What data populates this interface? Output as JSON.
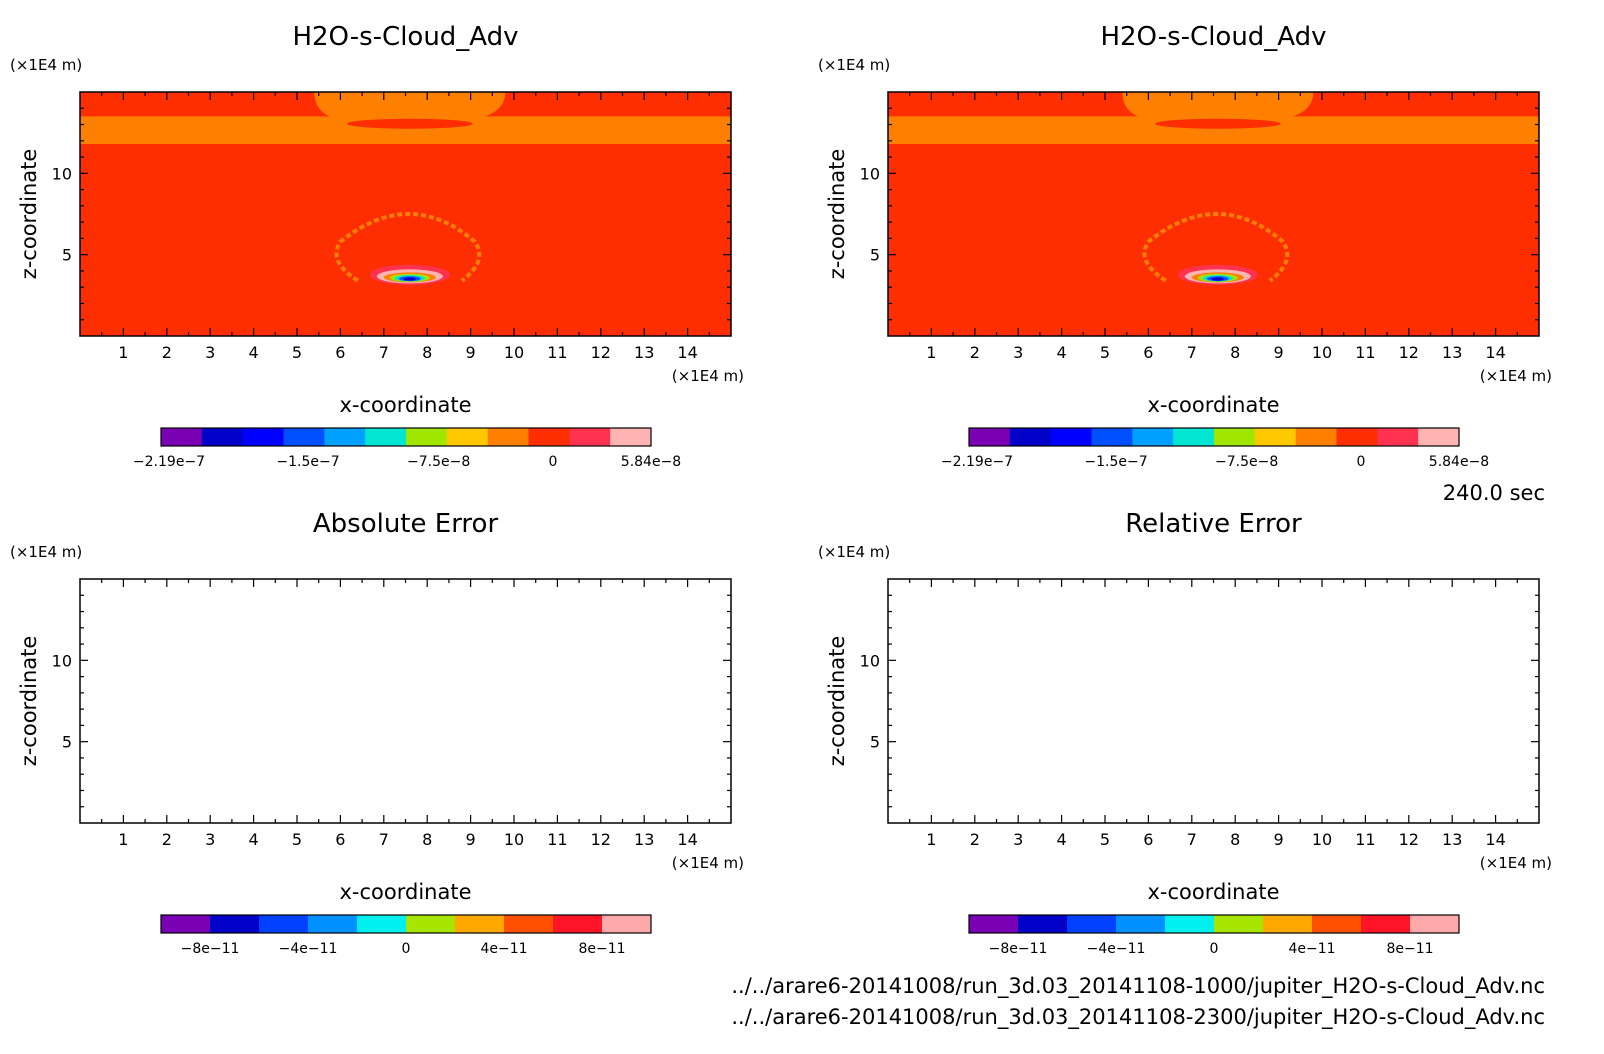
{
  "time_label": "240.0 sec",
  "files": [
    "../../arare6-20141008/run_3d.03_20141108-1000/jupiter_H2O-s-Cloud_Adv.nc",
    "../../arare6-20141008/run_3d.03_20141108-2300/jupiter_H2O-s-Cloud_Adv.nc"
  ],
  "colors": {
    "background_field": "#ff2e00",
    "cloud_band": "#ff8000",
    "palette_value": [
      "#7a00b4",
      "#0000c8",
      "#0000ff",
      "#0050ff",
      "#00a0ff",
      "#00e6d2",
      "#a0e600",
      "#ffc800",
      "#ff8000",
      "#ff2e00",
      "#ff3250",
      "#ffb4b4"
    ],
    "palette_error": [
      "#7a00b4",
      "#0000c8",
      "#0040ff",
      "#0090ff",
      "#00f0f0",
      "#a8e600",
      "#ffa800",
      "#ff5000",
      "#ff1428",
      "#ffaaaa"
    ]
  },
  "chart_data": [
    {
      "type": "heatmap",
      "title": "H2O-s-Cloud_Adv",
      "xlabel": "x-coordinate",
      "ylabel": "z-coordinate",
      "x_unit": "(×1E4 m)",
      "y_unit": "(×1E4 m)",
      "xlim": [
        0,
        15
      ],
      "ylim": [
        0,
        15
      ],
      "x_ticks": [
        1,
        2,
        3,
        4,
        5,
        6,
        7,
        8,
        9,
        10,
        11,
        12,
        13,
        14
      ],
      "y_ticks": [
        5,
        10
      ],
      "colorbar_labels": [
        "-2.19e-7",
        "-1.5e-7",
        "-7.5e-8",
        "0",
        "5.84e-8"
      ],
      "colorbar_range": [
        -2.19e-07,
        5.84e-08
      ],
      "field": "cloud",
      "palette": "value"
    },
    {
      "type": "heatmap",
      "title": "H2O-s-Cloud_Adv",
      "xlabel": "x-coordinate",
      "ylabel": "z-coordinate",
      "x_unit": "(×1E4 m)",
      "y_unit": "(×1E4 m)",
      "xlim": [
        0,
        15
      ],
      "ylim": [
        0,
        15
      ],
      "x_ticks": [
        1,
        2,
        3,
        4,
        5,
        6,
        7,
        8,
        9,
        10,
        11,
        12,
        13,
        14
      ],
      "y_ticks": [
        5,
        10
      ],
      "colorbar_labels": [
        "-2.19e-7",
        "-1.5e-7",
        "-7.5e-8",
        "0",
        "5.84e-8"
      ],
      "colorbar_range": [
        -2.19e-07,
        5.84e-08
      ],
      "field": "cloud",
      "palette": "value"
    },
    {
      "type": "heatmap",
      "title": "Absolute Error",
      "xlabel": "x-coordinate",
      "ylabel": "z-coordinate",
      "x_unit": "(×1E4 m)",
      "y_unit": "(×1E4 m)",
      "xlim": [
        0,
        15
      ],
      "ylim": [
        0,
        15
      ],
      "x_ticks": [
        1,
        2,
        3,
        4,
        5,
        6,
        7,
        8,
        9,
        10,
        11,
        12,
        13,
        14
      ],
      "y_ticks": [
        5,
        10
      ],
      "colorbar_labels": [
        "-8e-11",
        "-4e-11",
        "0",
        "4e-11",
        "8e-11"
      ],
      "colorbar_range": [
        -1e-10,
        1e-10
      ],
      "field": "empty",
      "palette": "error"
    },
    {
      "type": "heatmap",
      "title": "Relative Error",
      "xlabel": "x-coordinate",
      "ylabel": "z-coordinate",
      "x_unit": "(×1E4 m)",
      "y_unit": "(×1E4 m)",
      "xlim": [
        0,
        15
      ],
      "ylim": [
        0,
        15
      ],
      "x_ticks": [
        1,
        2,
        3,
        4,
        5,
        6,
        7,
        8,
        9,
        10,
        11,
        12,
        13,
        14
      ],
      "y_ticks": [
        5,
        10
      ],
      "colorbar_labels": [
        "-8e-11",
        "-4e-11",
        "0",
        "4e-11",
        "8e-11"
      ],
      "colorbar_range": [
        -1e-10,
        1e-10
      ],
      "field": "empty",
      "palette": "error"
    }
  ]
}
